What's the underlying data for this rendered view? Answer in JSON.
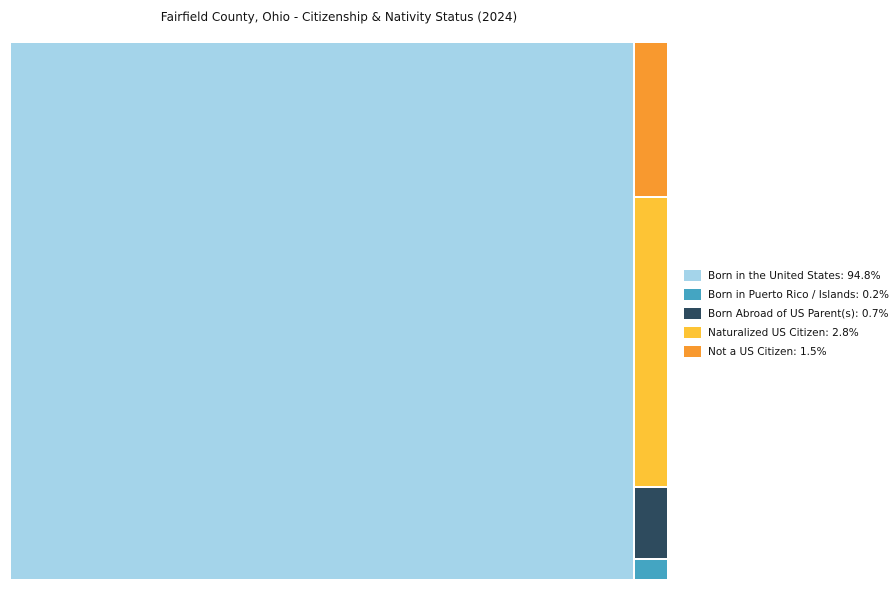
{
  "chart_data": {
    "type": "treemap",
    "title": "Fairfield County, Ohio - Citizenship & Nativity Status (2024)",
    "legend_position": "right",
    "layout": "first-item-left-column-rest-stacked-right-reversed",
    "series": [
      {
        "label": "Born in the United States",
        "value": 94.8,
        "color": "#a4d4ea",
        "legend_label": "Born in the United States: 94.8%"
      },
      {
        "label": "Born in Puerto Rico / Islands",
        "value": 0.2,
        "color": "#44a5c2",
        "legend_label": "Born in Puerto Rico / Islands: 0.2%"
      },
      {
        "label": "Born Abroad of US Parent(s)",
        "value": 0.7,
        "color": "#2e4b5e",
        "legend_label": "Born Abroad of US Parent(s): 0.7%"
      },
      {
        "label": "Naturalized US Citizen",
        "value": 2.8,
        "color": "#fdc435",
        "legend_label": "Naturalized US Citizen: 2.8%"
      },
      {
        "label": "Not a US Citizen",
        "value": 1.5,
        "color": "#f8992f",
        "legend_label": "Not a US Citizen: 1.5%"
      }
    ]
  }
}
